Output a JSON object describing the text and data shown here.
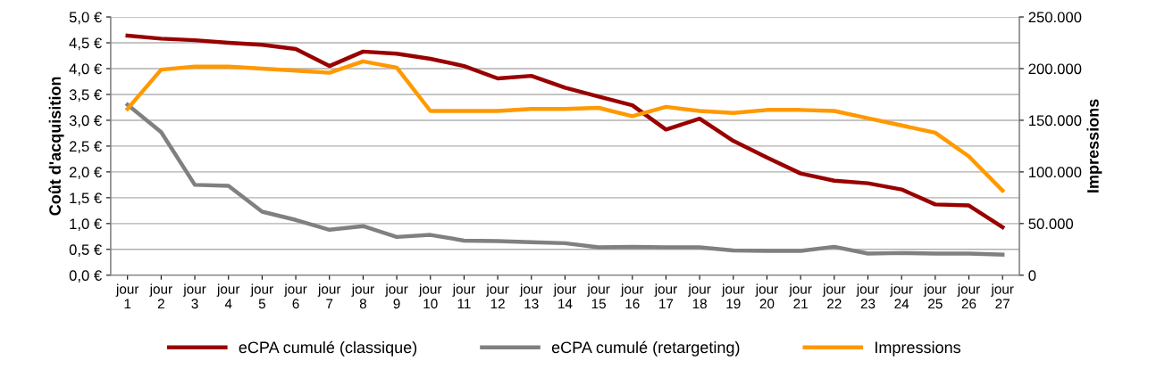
{
  "chart_data": {
    "type": "line",
    "ylabel": "Coût d'acquisition",
    "y2label": "Impressions",
    "categories": [
      "jour\n1",
      "jour\n2",
      "jour\n3",
      "jour\n4",
      "jour\n5",
      "jour\n6",
      "jour\n7",
      "jour\n8",
      "jour\n9",
      "jour\n10",
      "jour\n11",
      "jour\n12",
      "jour\n13",
      "jour\n14",
      "jour\n15",
      "jour\n16",
      "jour\n17",
      "jour\n18",
      "jour\n19",
      "jour\n20",
      "jour\n21",
      "jour\n22",
      "jour\n23",
      "jour\n24",
      "jour\n25",
      "jour\n26",
      "jour\n27"
    ],
    "series": [
      {
        "name": "eCPA cumulé (classique)",
        "color": "#990000",
        "values": [
          4.64,
          4.58,
          4.55,
          4.5,
          4.46,
          4.38,
          4.05,
          4.33,
          4.29,
          4.19,
          4.05,
          3.81,
          3.86,
          3.63,
          3.46,
          3.29,
          2.82,
          3.03,
          2.6,
          2.28,
          1.97,
          1.83,
          1.78,
          1.66,
          1.37,
          1.35,
          0.93
        ]
      },
      {
        "name": "eCPA cumulé (retargeting)",
        "color": "#808080",
        "values": [
          3.3,
          2.77,
          1.75,
          1.73,
          1.23,
          1.07,
          0.88,
          0.95,
          0.74,
          0.78,
          0.67,
          0.66,
          0.64,
          0.62,
          0.54,
          0.55,
          0.54,
          0.54,
          0.48,
          0.47,
          0.47,
          0.55,
          0.42,
          0.43,
          0.42,
          0.42,
          0.4
        ]
      },
      {
        "name": "Impressions",
        "color": "#ff9900",
        "axis": "y2",
        "values": [
          161000,
          199000,
          202000,
          202000,
          200000,
          198000,
          196000,
          207000,
          201000,
          159000,
          159000,
          159000,
          161000,
          161000,
          162000,
          154000,
          163000,
          159000,
          157000,
          160000,
          160000,
          159000,
          152000,
          145000,
          138000,
          115000,
          82000
        ]
      }
    ],
    "ylim": [
      0,
      5
    ],
    "yticks": [
      {
        "value": 0,
        "label": "0,0 €"
      },
      {
        "value": 0.5,
        "label": "0,5 €"
      },
      {
        "value": 1,
        "label": "1,0 €"
      },
      {
        "value": 1.5,
        "label": "1,5 €"
      },
      {
        "value": 2,
        "label": "2,0 €"
      },
      {
        "value": 2.5,
        "label": "2,5 €"
      },
      {
        "value": 3,
        "label": "3,0 €"
      },
      {
        "value": 3.5,
        "label": "3,5 €"
      },
      {
        "value": 4,
        "label": "4,0 €"
      },
      {
        "value": 4.5,
        "label": "4,5 €"
      },
      {
        "value": 5,
        "label": "5,0 €"
      }
    ],
    "y2lim": [
      0,
      250000
    ],
    "y2ticks": [
      0,
      {
        "value": 50000,
        "label": "50.000"
      },
      {
        "value": 100000,
        "label": "100.000"
      },
      {
        "value": 150000,
        "label": "150.000"
      },
      {
        "value": 200000,
        "label": "200.000"
      },
      {
        "value": 250000,
        "label": "250.000"
      }
    ],
    "grid": "y",
    "legend": "bottom",
    "marker": "none",
    "line_style": "solid"
  }
}
